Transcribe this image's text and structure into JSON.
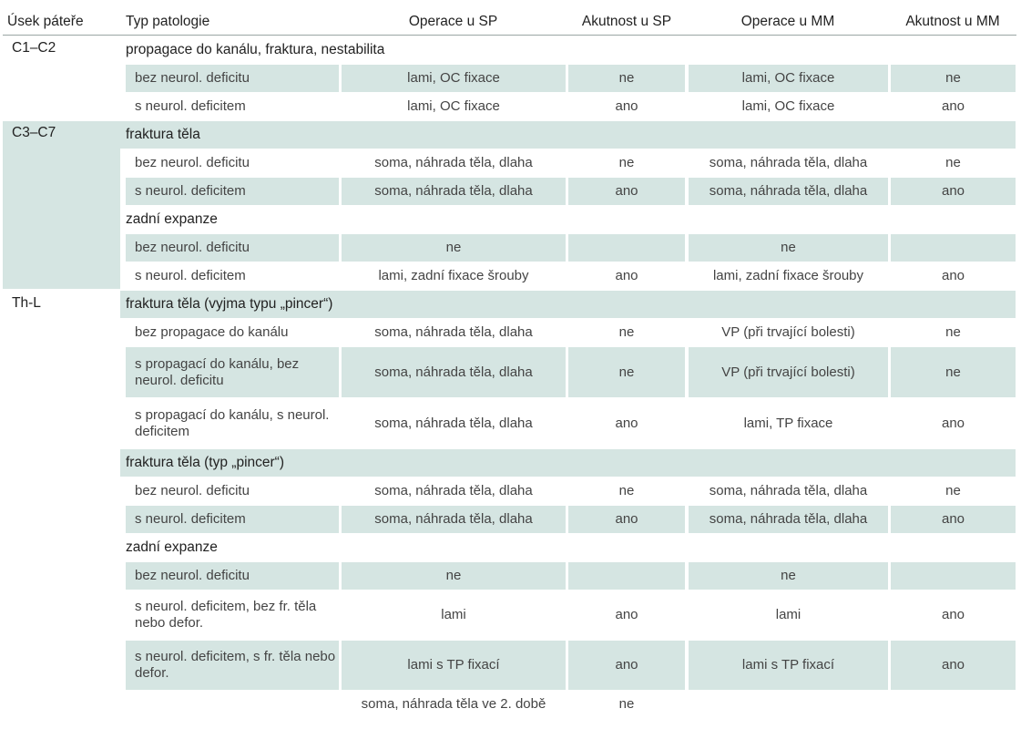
{
  "headers": {
    "segment": "Úsek páteře",
    "pathology": "Typ patologie",
    "op_sp": "Operace u SP",
    "acute_sp": "Akutnost u SP",
    "op_mm": "Operace u MM",
    "acute_mm": "Akutnost u MM"
  },
  "sections": [
    {
      "label": "C1–C2"
    },
    {
      "label": "C3–C7"
    },
    {
      "label": "Th-L"
    }
  ],
  "rows": [
    {
      "kind": "sub",
      "text": "propagace do kanálu, fraktura, nestabilita"
    },
    {
      "kind": "data",
      "cells": [
        "bez neurol. deficitu",
        "lami, OC fixace",
        "ne",
        "lami, OC fixace",
        "ne"
      ]
    },
    {
      "kind": "data",
      "cells": [
        "s neurol. deficitem",
        "lami, OC fixace",
        "ano",
        "lami, OC fixace",
        "ano"
      ]
    },
    {
      "kind": "sub",
      "text": "fraktura těla"
    },
    {
      "kind": "data",
      "cells": [
        "bez neurol. deficitu",
        "soma, náhrada těla, dlaha",
        "ne",
        "soma, náhrada těla, dlaha",
        "ne"
      ]
    },
    {
      "kind": "data",
      "cells": [
        "s neurol. deficitem",
        "soma, náhrada těla, dlaha",
        "ano",
        "soma, náhrada těla, dlaha",
        "ano"
      ]
    },
    {
      "kind": "sub",
      "text": "zadní expanze"
    },
    {
      "kind": "data",
      "cells": [
        "bez neurol. deficitu",
        "ne",
        "",
        "ne",
        ""
      ]
    },
    {
      "kind": "data",
      "cells": [
        "s neurol. deficitem",
        "lami, zadní fixace šrouby",
        "ano",
        "lami, zadní fixace šrouby",
        "ano"
      ]
    },
    {
      "kind": "sub",
      "text": "fraktura těla (vyjma typu „pincer“)"
    },
    {
      "kind": "data",
      "cells": [
        "bez propagace do kanálu",
        "soma, náhrada těla, dlaha",
        "ne",
        "VP (při trvající bolesti)",
        "ne"
      ]
    },
    {
      "kind": "data",
      "cells": [
        "s propagací do kanálu, bez neurol. deficitu",
        "soma, náhrada těla, dlaha",
        "ne",
        "VP (při trvající bolesti)",
        "ne"
      ]
    },
    {
      "kind": "data",
      "cells": [
        "s propagací do kanálu, s neurol. deficitem",
        "soma, náhrada těla, dlaha",
        "ano",
        "lami, TP fixace",
        "ano"
      ]
    },
    {
      "kind": "sub",
      "text": "fraktura těla (typ „pincer“)"
    },
    {
      "kind": "data",
      "cells": [
        "bez neurol. deficitu",
        "soma, náhrada těla, dlaha",
        "ne",
        "soma, náhrada těla, dlaha",
        "ne"
      ]
    },
    {
      "kind": "data",
      "cells": [
        "s neurol. deficitem",
        "soma, náhrada těla, dlaha",
        "ano",
        "soma, náhrada těla, dlaha",
        "ano"
      ]
    },
    {
      "kind": "sub",
      "text": "zadní expanze"
    },
    {
      "kind": "data",
      "cells": [
        "bez neurol. deficitu",
        "ne",
        "",
        "ne",
        ""
      ]
    },
    {
      "kind": "data",
      "cells": [
        "s neurol. deficitem, bez fr. těla nebo defor.",
        "lami",
        "ano",
        "lami",
        "ano"
      ]
    },
    {
      "kind": "data",
      "cells": [
        "s neurol. deficitem, s fr. těla nebo defor.",
        "lami s TP fixací",
        "ano",
        "lami s TP fixací",
        "ano"
      ]
    },
    {
      "kind": "data",
      "cells": [
        "",
        "soma, náhrada těla ve 2. době",
        "ne",
        "",
        ""
      ]
    }
  ]
}
